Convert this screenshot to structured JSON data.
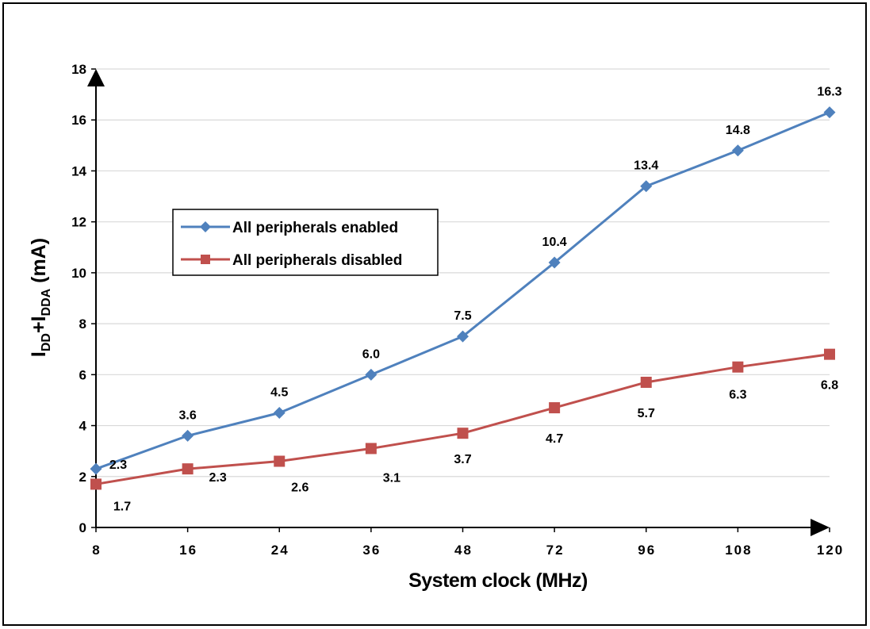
{
  "chart_data": {
    "type": "line",
    "title": "",
    "xlabel": "System clock (MHz)",
    "ylabel_main": "I",
    "ylabel_sub1": "DD",
    "ylabel_plus": "+I",
    "ylabel_sub2": "DDA",
    "ylabel_unit": " (mA)",
    "categories": [
      "8",
      "16",
      "24",
      "36",
      "48",
      "72",
      "96",
      "108",
      "120"
    ],
    "ylim": [
      0,
      18
    ],
    "yticks": [
      0,
      2,
      4,
      6,
      8,
      10,
      12,
      14,
      16,
      18
    ],
    "grid": true,
    "legend_position": "left",
    "series": [
      {
        "name": "All peripherals enabled",
        "color": "#4f81bd",
        "marker": "diamond",
        "values": [
          2.3,
          3.6,
          4.5,
          6.0,
          7.5,
          10.4,
          13.4,
          14.8,
          16.3
        ],
        "labels": [
          "2.3",
          "3.6",
          "4.5",
          "6.0",
          "7.5",
          "10.4",
          "13.4",
          "14.8",
          "16.3"
        ]
      },
      {
        "name": "All peripherals disabled",
        "color": "#c0504d",
        "marker": "square",
        "values": [
          1.7,
          2.3,
          2.6,
          3.1,
          3.7,
          4.7,
          5.7,
          6.3,
          6.8
        ],
        "labels": [
          "1.7",
          "2.3",
          "2.6",
          "3.1",
          "3.7",
          "4.7",
          "5.7",
          "6.3",
          "6.8"
        ]
      }
    ]
  }
}
